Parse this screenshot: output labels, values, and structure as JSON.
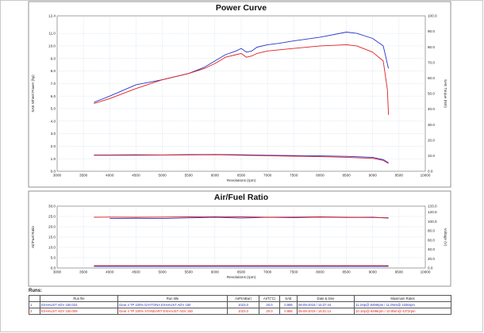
{
  "chart_data": [
    {
      "type": "line",
      "title": "Power Curve",
      "xlabel": "Revolutions (rpm)",
      "ylabel": "SAE Wheel Power (hp)",
      "y2label": "SAE Torque (Nm)",
      "xlim": [
        3000,
        10000
      ],
      "ylim": [
        0,
        12.4
      ],
      "y2lim": [
        0,
        100
      ],
      "grid": true,
      "x_ticks": [
        "3000",
        "3500",
        "4000",
        "4500",
        "5000",
        "5500",
        "6000",
        "6500",
        "7000",
        "7500",
        "8000",
        "8500",
        "9000",
        "9500",
        "10000"
      ],
      "y_ticks": [
        "0.0",
        "1.0",
        "2.0",
        "3.0",
        "4.0",
        "5.0",
        "6.0",
        "7.0",
        "8.0",
        "9.0",
        "10.0",
        "11.0",
        "12.4"
      ],
      "y2_ticks": [
        "0.0",
        "10.0",
        "20.0",
        "30.0",
        "40.0",
        "50.0",
        "60.0",
        "70.0",
        "80.0",
        "90.0",
        "100.0"
      ],
      "series": [
        {
          "color": "#2a36c8",
          "axis": "left",
          "points": [
            [
              3700,
              5.5
            ],
            [
              4000,
              6.0
            ],
            [
              4500,
              6.9
            ],
            [
              5000,
              7.3
            ],
            [
              5500,
              7.8
            ],
            [
              5800,
              8.3
            ],
            [
              6000,
              8.8
            ],
            [
              6200,
              9.3
            ],
            [
              6400,
              9.6
            ],
            [
              6500,
              9.8
            ],
            [
              6600,
              9.5
            ],
            [
              6700,
              9.6
            ],
            [
              6800,
              9.9
            ],
            [
              7000,
              10.1
            ],
            [
              7200,
              10.2
            ],
            [
              7500,
              10.4
            ],
            [
              8000,
              10.7
            ],
            [
              8500,
              11.1
            ],
            [
              8700,
              11.0
            ],
            [
              9000,
              10.6
            ],
            [
              9200,
              10.0
            ],
            [
              9300,
              8.2
            ]
          ]
        },
        {
          "color": "#e02020",
          "axis": "left",
          "points": [
            [
              3700,
              5.4
            ],
            [
              4000,
              5.8
            ],
            [
              4500,
              6.6
            ],
            [
              5000,
              7.3
            ],
            [
              5500,
              7.8
            ],
            [
              5800,
              8.2
            ],
            [
              6000,
              8.6
            ],
            [
              6200,
              9.1
            ],
            [
              6400,
              9.3
            ],
            [
              6500,
              9.4
            ],
            [
              6600,
              9.1
            ],
            [
              6700,
              9.2
            ],
            [
              6800,
              9.4
            ],
            [
              7000,
              9.6
            ],
            [
              7500,
              9.8
            ],
            [
              8000,
              10.0
            ],
            [
              8500,
              10.1
            ],
            [
              8700,
              10.0
            ],
            [
              9000,
              9.5
            ],
            [
              9200,
              8.8
            ],
            [
              9280,
              6.5
            ],
            [
              9300,
              4.5
            ]
          ]
        },
        {
          "color": "#2a36c8",
          "axis": "right",
          "points": [
            [
              3700,
              10.5
            ],
            [
              4000,
              10.5
            ],
            [
              4500,
              10.6
            ],
            [
              5000,
              10.5
            ],
            [
              5500,
              10.7
            ],
            [
              6000,
              10.8
            ],
            [
              6500,
              10.6
            ],
            [
              7000,
              10.3
            ],
            [
              7500,
              10.1
            ],
            [
              8000,
              9.9
            ],
            [
              8500,
              9.6
            ],
            [
              9000,
              9.0
            ],
            [
              9200,
              7.5
            ],
            [
              9300,
              5.5
            ]
          ]
        },
        {
          "color": "#e02020",
          "axis": "right",
          "points": [
            [
              3700,
              10.3
            ],
            [
              4000,
              10.3
            ],
            [
              4500,
              10.3
            ],
            [
              5000,
              10.4
            ],
            [
              5500,
              10.5
            ],
            [
              6000,
              10.6
            ],
            [
              6500,
              10.3
            ],
            [
              7000,
              10.0
            ],
            [
              7500,
              9.7
            ],
            [
              8000,
              9.4
            ],
            [
              8500,
              9.0
            ],
            [
              9000,
              8.3
            ],
            [
              9200,
              7.0
            ],
            [
              9300,
              5.0
            ]
          ]
        }
      ]
    },
    {
      "type": "line",
      "title": "Air/Fuel Ratio",
      "xlabel": "Revolutions (rpm)",
      "ylabel": "Air/Fuel Ratio",
      "y2label": "Voltage (V)",
      "xlim": [
        3000,
        10000
      ],
      "ylim": [
        0,
        30
      ],
      "y2lim": [
        0,
        133
      ],
      "grid": true,
      "x_ticks": [
        "3000",
        "3500",
        "4000",
        "4500",
        "5000",
        "5500",
        "6000",
        "6500",
        "7000",
        "7500",
        "8000",
        "8500",
        "9000",
        "9500",
        "10000"
      ],
      "y_ticks": [
        "0.0",
        "5.0",
        "10.0",
        "15.0",
        "20.0",
        "25.0",
        "30.0"
      ],
      "y2_ticks": [
        "0.0",
        "20.0",
        "40.0",
        "60.0",
        "80.0",
        "100.0",
        "120.0",
        "133.0"
      ],
      "series": [
        {
          "color": "#2a36c8",
          "axis": "left",
          "points": [
            [
              4000,
              24.0
            ],
            [
              4500,
              24.1
            ],
            [
              5000,
              24.0
            ],
            [
              5500,
              24.3
            ],
            [
              6000,
              24.6
            ],
            [
              6500,
              24.2
            ],
            [
              7000,
              24.6
            ],
            [
              7500,
              24.4
            ],
            [
              8000,
              24.7
            ],
            [
              8500,
              24.5
            ],
            [
              9000,
              24.6
            ],
            [
              9300,
              24.2
            ]
          ]
        },
        {
          "color": "#e02020",
          "axis": "left",
          "points": [
            [
              3700,
              24.6
            ],
            [
              4000,
              24.7
            ],
            [
              4500,
              24.6
            ],
            [
              5000,
              24.7
            ],
            [
              5500,
              24.8
            ],
            [
              6000,
              24.9
            ],
            [
              6500,
              24.8
            ],
            [
              7000,
              24.6
            ],
            [
              7500,
              24.7
            ],
            [
              8000,
              24.8
            ],
            [
              8500,
              24.6
            ],
            [
              9000,
              24.5
            ],
            [
              9300,
              24.4
            ]
          ]
        },
        {
          "color": "#2a36c8",
          "axis": "left",
          "points": [
            [
              3700,
              0.8
            ],
            [
              4500,
              0.8
            ],
            [
              5500,
              0.8
            ],
            [
              6500,
              0.8
            ],
            [
              7500,
              0.8
            ],
            [
              8500,
              0.8
            ],
            [
              9300,
              0.8
            ]
          ]
        },
        {
          "color": "#e02020",
          "axis": "left",
          "points": [
            [
              3700,
              1.1
            ],
            [
              4500,
              1.1
            ],
            [
              5500,
              1.1
            ],
            [
              6500,
              1.1
            ],
            [
              7500,
              1.1
            ],
            [
              8500,
              1.1
            ],
            [
              9300,
              1.1
            ]
          ]
        }
      ]
    }
  ],
  "runs": {
    "heading": "Runs:",
    "columns": [
      "Run file",
      "Run title",
      "AirP(mBar)",
      "AirT(°C)",
      "SAE",
      "Date & time",
      "Maximum Rates"
    ],
    "rows": [
      {
        "n": "1",
        "color": "#2a36c8",
        "file": "EXHAUST ADV 150.024",
        "title": "Gear 4 TP 100% DAYTONA EXHAUST ADV 150",
        "airp": "1023.0",
        "airt": "20.0",
        "sae": "0.985",
        "date": "06-09-2019 / 15:27:44",
        "max": "11.2Hp@ 8499rpm / 11.0Nm@ 4336rpm"
      },
      {
        "n": "2",
        "color": "#e02020",
        "file": "EXHAUST ADV 150.009",
        "title": "Gear 4 TP 100% STANDART EXHAUST ADV 150",
        "airp": "1023.0",
        "airt": "20.0",
        "sae": "0.985",
        "date": "05-09-2019 / 16:01:14",
        "max": "10.1Hp@ 8496rpm / 10.8Nm@ 4372rpm"
      }
    ]
  }
}
